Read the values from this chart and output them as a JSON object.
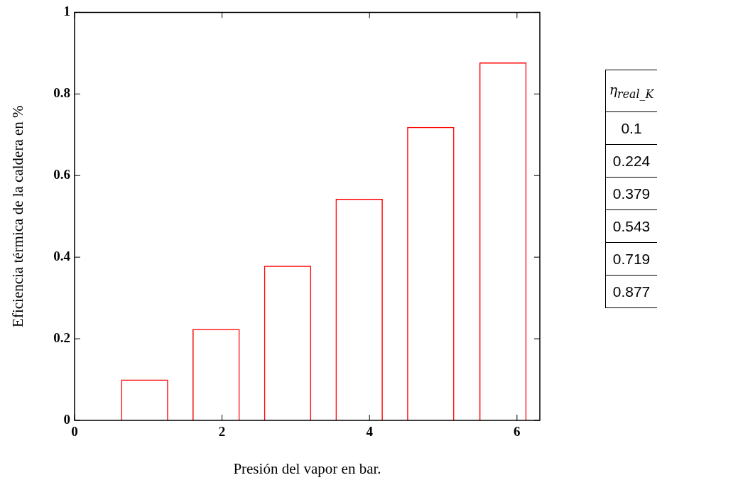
{
  "chart_data": [
    {
      "type": "bar",
      "xlabel": "Presión del vapor en bar.",
      "ylabel": "Eficiencia térmica de la caldera en %",
      "x": [
        0.95,
        1.92,
        2.89,
        3.86,
        4.83,
        5.81
      ],
      "values": [
        0.1,
        0.224,
        0.379,
        0.543,
        0.719,
        0.877
      ],
      "color": "#ff0000",
      "xlim": [
        0,
        6.31
      ],
      "xticks": [
        0,
        2,
        4,
        6
      ],
      "ylim": [
        0,
        1
      ],
      "yticks": [
        0,
        0.2,
        0.4,
        0.6,
        0.8,
        1
      ],
      "grid": false,
      "legend": false
    },
    {
      "type": "other",
      "title": "η$_{real_K}$",
      "annotations": [
        "0.1",
        "0.224",
        "0.379",
        "0.543",
        "0.719",
        "0.877"
      ]
    }
  ]
}
